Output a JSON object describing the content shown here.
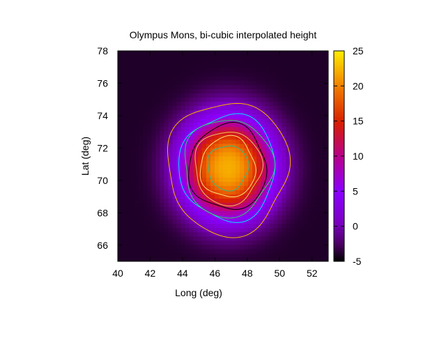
{
  "chart_data": {
    "type": "heatmap",
    "title": "Olympus Mons, bi-cubic interpolated height",
    "xlabel": "Long (deg)",
    "ylabel": "Lat (deg)",
    "xlim": [
      40,
      53
    ],
    "ylim": [
      65,
      78
    ],
    "x_ticks": [
      40,
      42,
      44,
      46,
      48,
      50,
      52
    ],
    "y_ticks": [
      66,
      68,
      70,
      72,
      74,
      76,
      78
    ],
    "colorbar": {
      "range": [
        -5,
        25
      ],
      "ticks": [
        -5,
        0,
        5,
        10,
        15,
        20,
        25
      ],
      "colormap": "gnuplot (black-purple-red-orange-yellow)"
    },
    "peak": {
      "long": 46.8,
      "lat": 70.8,
      "height": 22
    },
    "contour_levels": [
      {
        "level": 0,
        "color": "#ffb000"
      },
      {
        "level": 5,
        "color": "#00e8ff"
      },
      {
        "level": 7,
        "color": "#30d070"
      },
      {
        "level": 10,
        "color": "#000000"
      },
      {
        "level": 13,
        "color": "#f0c060"
      },
      {
        "level": 16,
        "color": "#ffe080"
      },
      {
        "level": 19,
        "color": "#30c080"
      }
    ]
  }
}
